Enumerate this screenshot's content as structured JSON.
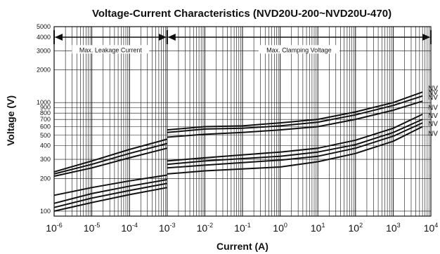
{
  "chart_data": {
    "type": "line",
    "title": "Voltage-Current Characteristics (NVD20U-200~NVD20U-470)",
    "xlabel": "Current (A)",
    "ylabel": "Voltage (V)",
    "xscale": "log",
    "yscale": "log",
    "xlim": [
      1e-06,
      10000
    ],
    "ylim": [
      90,
      5000
    ],
    "grid": true,
    "x_tick_labels": [
      {
        "base": "10",
        "exp": "-6"
      },
      {
        "base": "10",
        "exp": "-5"
      },
      {
        "base": "10",
        "exp": "-4"
      },
      {
        "base": "10",
        "exp": "-3"
      },
      {
        "base": "10",
        "exp": "-2"
      },
      {
        "base": "10",
        "exp": "-1"
      },
      {
        "base": "10",
        "exp": "0"
      },
      {
        "base": "10",
        "exp": "1"
      },
      {
        "base": "10",
        "exp": "2"
      },
      {
        "base": "10",
        "exp": "3"
      },
      {
        "base": "10",
        "exp": "4"
      }
    ],
    "y_ticks": [
      100,
      200,
      300,
      400,
      500,
      600,
      700,
      800,
      900,
      1000,
      2000,
      3000,
      4000,
      5000
    ],
    "y_tick_labels": [
      "100",
      "200",
      "300",
      "400",
      "500",
      "600",
      "700",
      "800",
      "900",
      "1000",
      "2000",
      "3000",
      "4000",
      "5000"
    ],
    "regions": [
      {
        "label": "Max. Leakage Current",
        "x_from": 1e-06,
        "x_to": 0.001
      },
      {
        "label": "Max. Clamping Voltage",
        "x_from": 0.001,
        "x_to": 10000
      }
    ],
    "series_label_text": "NV",
    "series": [
      {
        "leakage": {
          "x": [
            1e-06,
            1e-05,
            0.0001,
            0.001
          ],
          "y": [
            230,
            290,
            370,
            460
          ]
        },
        "clamp": {
          "x": [
            0.001,
            0.01,
            0.1,
            1,
            10,
            100,
            1000,
            6000
          ],
          "y": [
            560,
            600,
            610,
            650,
            700,
            820,
            1000,
            1250
          ]
        }
      },
      {
        "leakage": {
          "x": [
            1e-06,
            1e-05,
            0.0001,
            0.001
          ],
          "y": [
            220,
            270,
            340,
            420
          ]
        },
        "clamp": {
          "x": [
            0.001,
            0.01,
            0.1,
            1,
            10,
            100,
            1000,
            6000
          ],
          "y": [
            530,
            570,
            580,
            610,
            660,
            770,
            940,
            1150
          ]
        }
      },
      {
        "leakage": {
          "x": [
            1e-06,
            1e-05,
            0.0001,
            0.001
          ],
          "y": [
            210,
            250,
            310,
            380
          ]
        },
        "clamp": {
          "x": [
            0.001,
            0.01,
            0.1,
            1,
            10,
            100,
            1000,
            6000
          ],
          "y": [
            480,
            510,
            530,
            560,
            600,
            700,
            850,
            1030
          ]
        }
      },
      {
        "leakage": {
          "x": [
            1e-06,
            1e-05,
            0.0001,
            0.001
          ],
          "y": [
            140,
            165,
            190,
            215
          ]
        },
        "clamp": {
          "x": [
            0.001,
            0.01,
            0.1,
            1,
            10,
            100,
            1000,
            6000
          ],
          "y": [
            290,
            310,
            330,
            350,
            380,
            450,
            580,
            780
          ]
        }
      },
      {
        "leakage": {
          "x": [
            1e-06,
            1e-05,
            0.0001,
            0.001
          ],
          "y": [
            118,
            145,
            170,
            195
          ]
        },
        "clamp": {
          "x": [
            0.001,
            0.01,
            0.1,
            1,
            10,
            100,
            1000,
            6000
          ],
          "y": [
            270,
            290,
            305,
            320,
            350,
            410,
            530,
            700
          ]
        }
      },
      {
        "leakage": {
          "x": [
            1e-06,
            1e-05,
            0.0001,
            0.001
          ],
          "y": [
            108,
            132,
            155,
            180
          ]
        },
        "clamp": {
          "x": [
            0.001,
            0.01,
            0.1,
            1,
            10,
            100,
            1000,
            6000
          ],
          "y": [
            250,
            265,
            280,
            295,
            320,
            380,
            490,
            650
          ]
        }
      },
      {
        "leakage": {
          "x": [
            1e-06,
            1e-05,
            0.0001,
            0.001
          ],
          "y": [
            100,
            120,
            142,
            165
          ]
        },
        "clamp": {
          "x": [
            0.001,
            0.01,
            0.1,
            1,
            10,
            100,
            1000,
            6000
          ],
          "y": [
            220,
            235,
            245,
            255,
            285,
            340,
            440,
            600
          ]
        }
      }
    ]
  }
}
